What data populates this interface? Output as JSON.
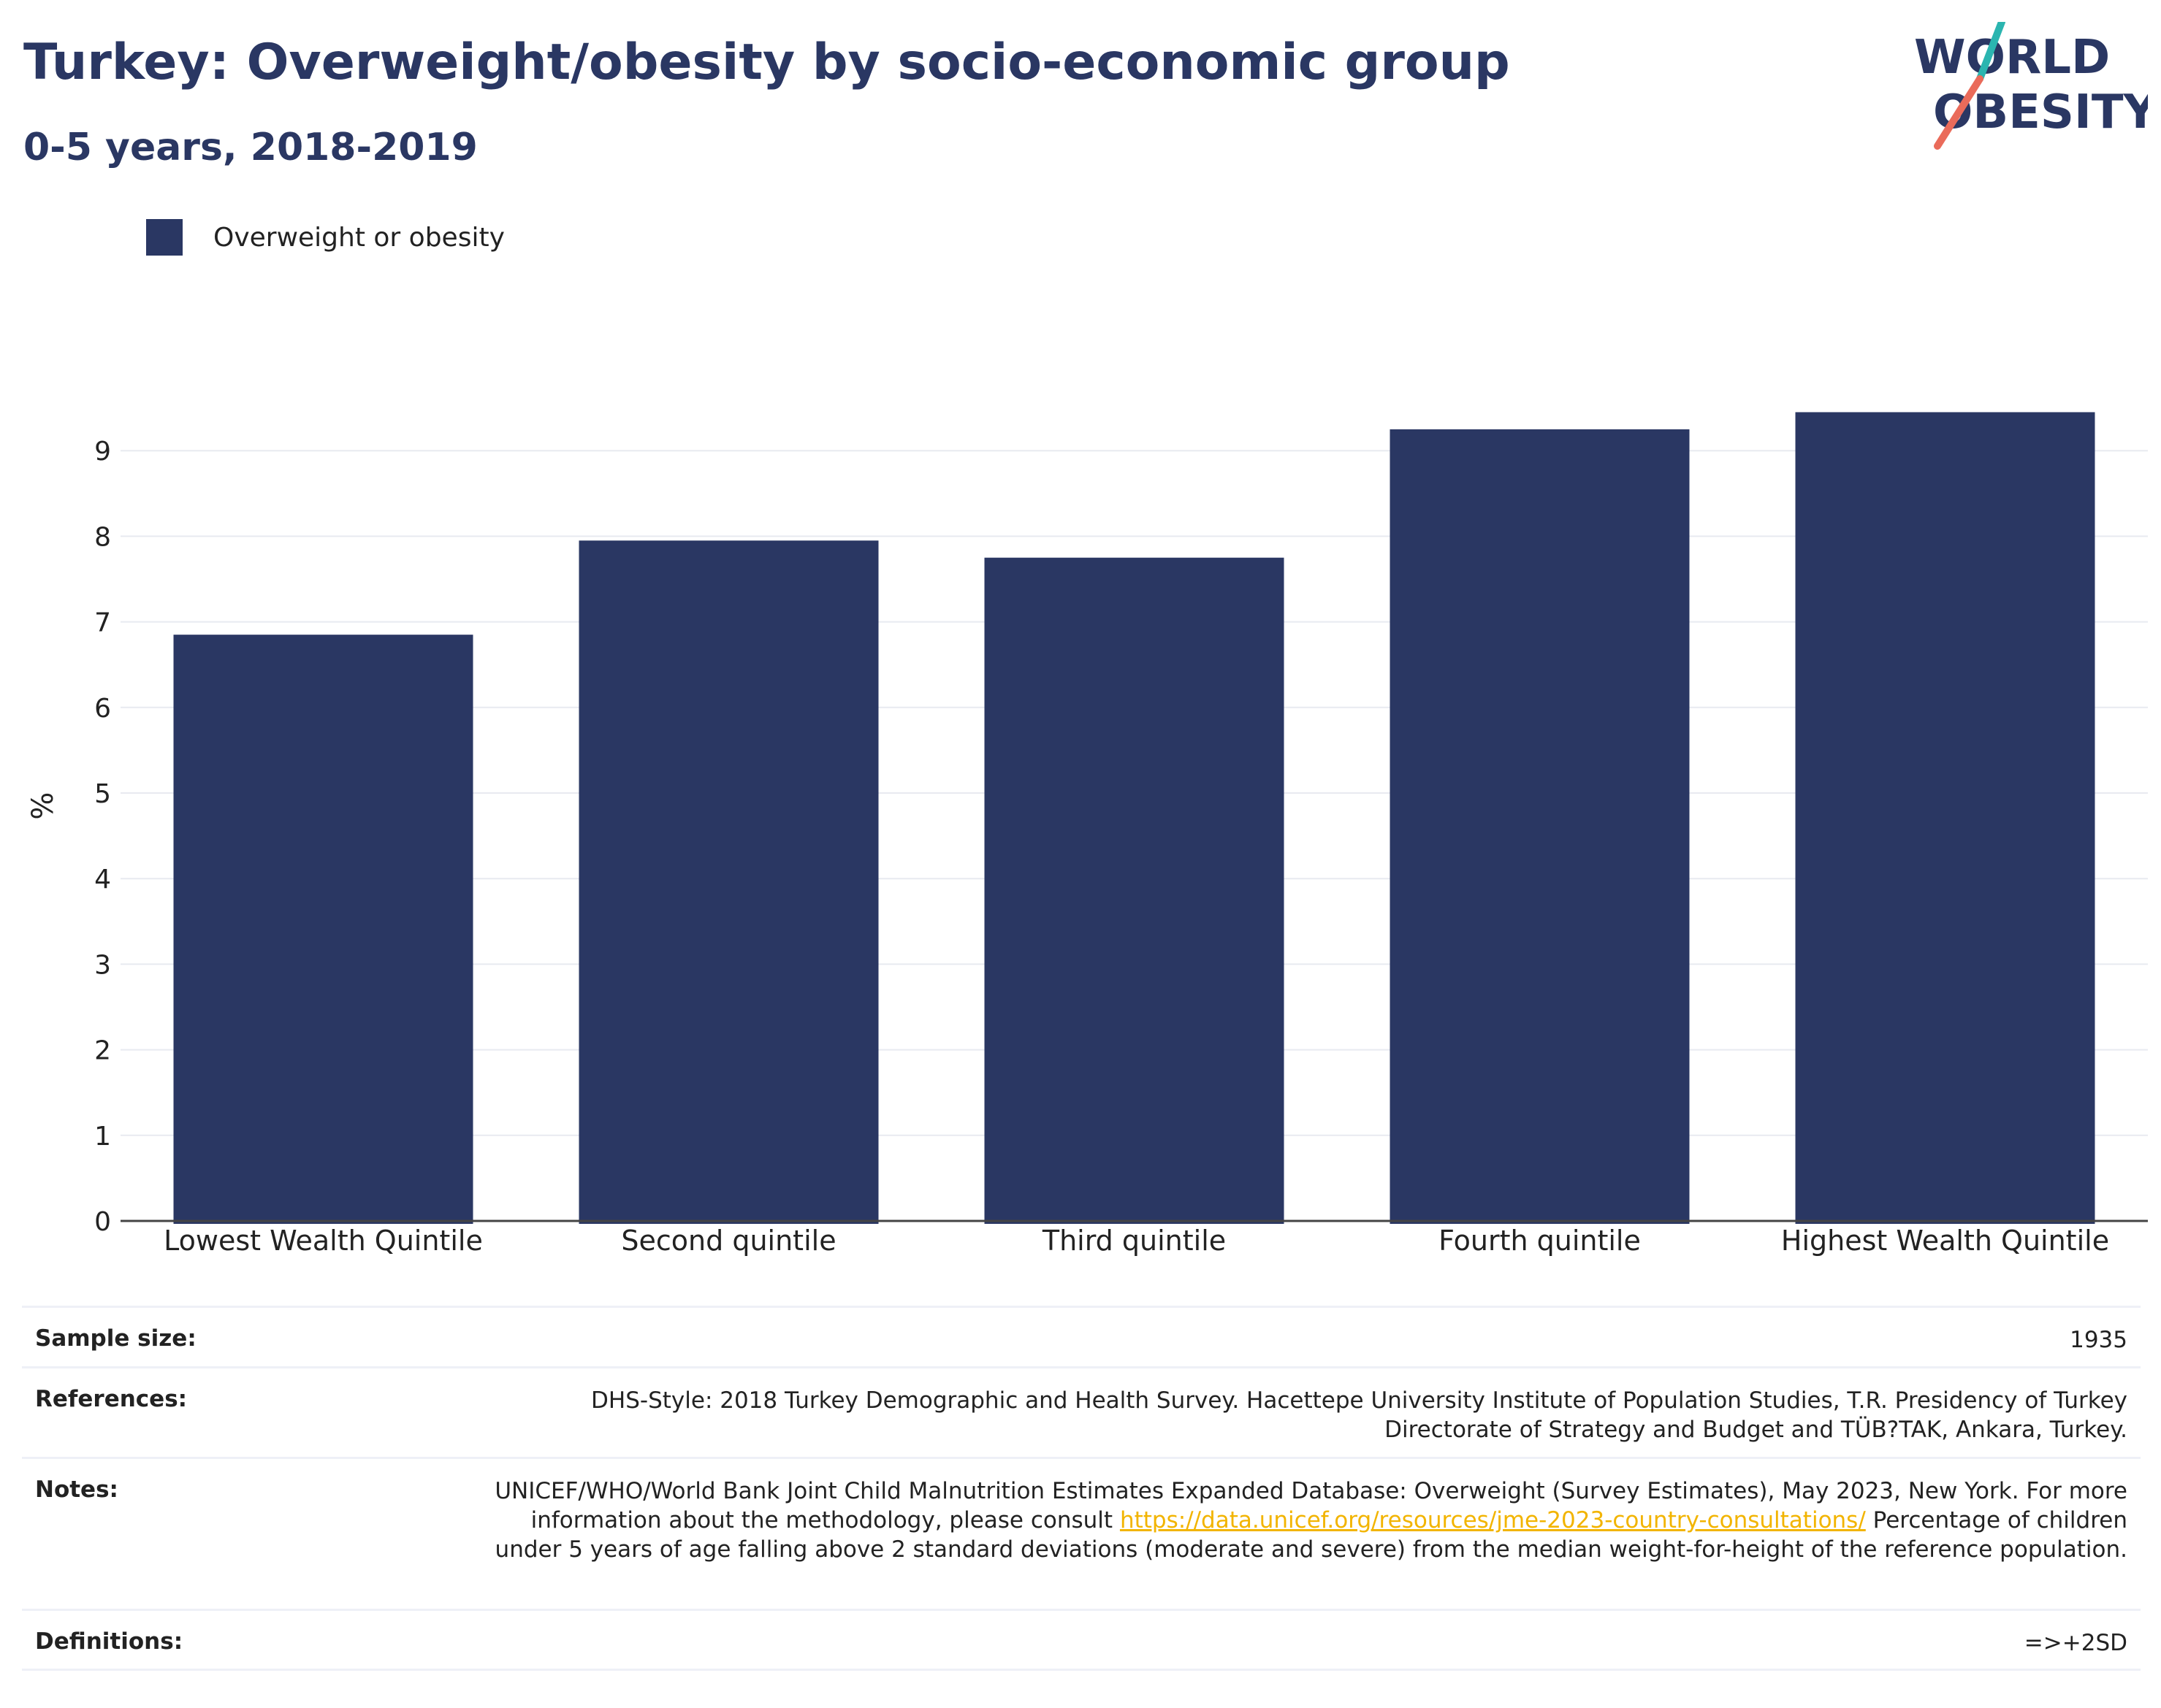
{
  "header": {
    "title": "Turkey: Overweight/obesity by socio-economic group",
    "subtitle": "0-5 years, 2018-2019"
  },
  "logo": {
    "line1": "WORLD",
    "line2": "OBESITY",
    "accent_teal": "#2bb5b0",
    "accent_coral": "#ea6b5a",
    "text_color": "#2a3763"
  },
  "colors": {
    "bar": "#2a3763",
    "grid": "#e8eaf0",
    "axis": "#444444",
    "link": "#f2b400"
  },
  "chart_data": {
    "type": "bar",
    "title": "Turkey: Overweight/obesity by socio-economic group",
    "subtitle": "0-5 years, 2018-2019",
    "categories": [
      "Lowest Wealth Quintile",
      "Second quintile",
      "Third quintile",
      "Fourth quintile",
      "Highest Wealth Quintile"
    ],
    "series": [
      {
        "name": "Overweight or obesity",
        "values": [
          6.85,
          7.95,
          7.75,
          9.25,
          9.45
        ]
      }
    ],
    "ylabel": "%",
    "xlabel": "",
    "ylim": [
      0,
      9.85
    ],
    "yticks": [
      0,
      1,
      2,
      3,
      4,
      5,
      6,
      7,
      8,
      9
    ],
    "grid": true,
    "legend_position": "top-left"
  },
  "info": {
    "sample_size": {
      "label": "Sample size:",
      "value": "1935"
    },
    "references": {
      "label": "References:",
      "value": "DHS-Style: 2018 Turkey Demographic and Health Survey. Hacettepe University Institute of Population Studies, T.R. Presidency of Turkey Directorate of Strategy and Budget and TÜB?TAK, Ankara, Turkey."
    },
    "notes": {
      "label": "Notes:",
      "text_before": "UNICEF/WHO/World Bank Joint Child Malnutrition Estimates Expanded Database: Overweight (Survey Estimates), May 2023, New York. For more information about the methodology, please consult ",
      "link_text": "https://data.unicef.org/resources/jme-2023-country-consultations/",
      "text_after": " Percentage of children under 5 years of age falling above 2 standard deviations (moderate and severe) from the median weight-for-height of the reference population."
    },
    "definitions": {
      "label": "Definitions:",
      "value": "=>+2SD"
    }
  }
}
